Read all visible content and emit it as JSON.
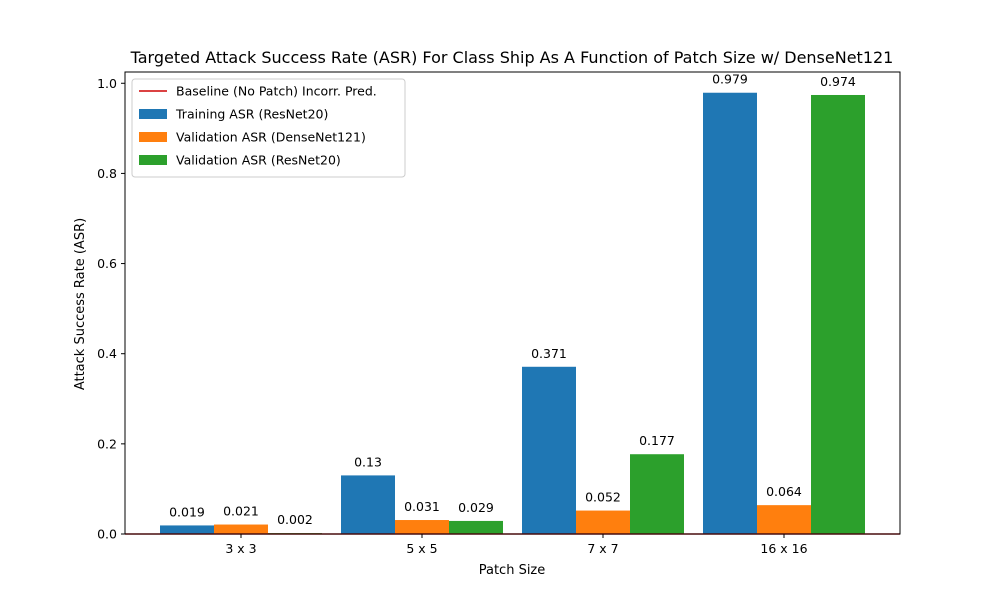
{
  "chart_data": {
    "type": "bar",
    "title": "Targeted Attack Success Rate (ASR) For Class Ship As A Function of Patch Size w/ DenseNet121",
    "xlabel": "Patch Size",
    "ylabel": "Attack Success Rate (ASR)",
    "categories": [
      "3 x 3",
      "5 x 5",
      "7 x 7",
      "16 x 16"
    ],
    "ylim": [
      0,
      1.025
    ],
    "yticks": [
      0.0,
      0.2,
      0.4,
      0.6,
      0.8,
      1.0
    ],
    "ytick_labels": [
      "0.0",
      "0.2",
      "0.4",
      "0.6",
      "0.8",
      "1.0"
    ],
    "grid": false,
    "legend_position": "top-left",
    "baseline": {
      "name": "Baseline (No Patch) Incorr. Pred.",
      "value": 0.0,
      "color": "#d62728"
    },
    "series": [
      {
        "name": "Training ASR (ResNet20)",
        "color": "#1f77b4",
        "values": [
          0.019,
          0.13,
          0.371,
          0.979
        ],
        "labels": [
          "0.019",
          "0.13",
          "0.371",
          "0.979"
        ]
      },
      {
        "name": "Validation ASR (DenseNet121)",
        "color": "#ff7f0e",
        "values": [
          0.021,
          0.031,
          0.052,
          0.064
        ],
        "labels": [
          "0.021",
          "0.031",
          "0.052",
          "0.064"
        ]
      },
      {
        "name": "Validation ASR (ResNet20)",
        "color": "#2ca02c",
        "values": [
          0.002,
          0.029,
          0.177,
          0.974
        ],
        "labels": [
          "0.002",
          "0.029",
          "0.177",
          "0.974"
        ]
      }
    ]
  }
}
